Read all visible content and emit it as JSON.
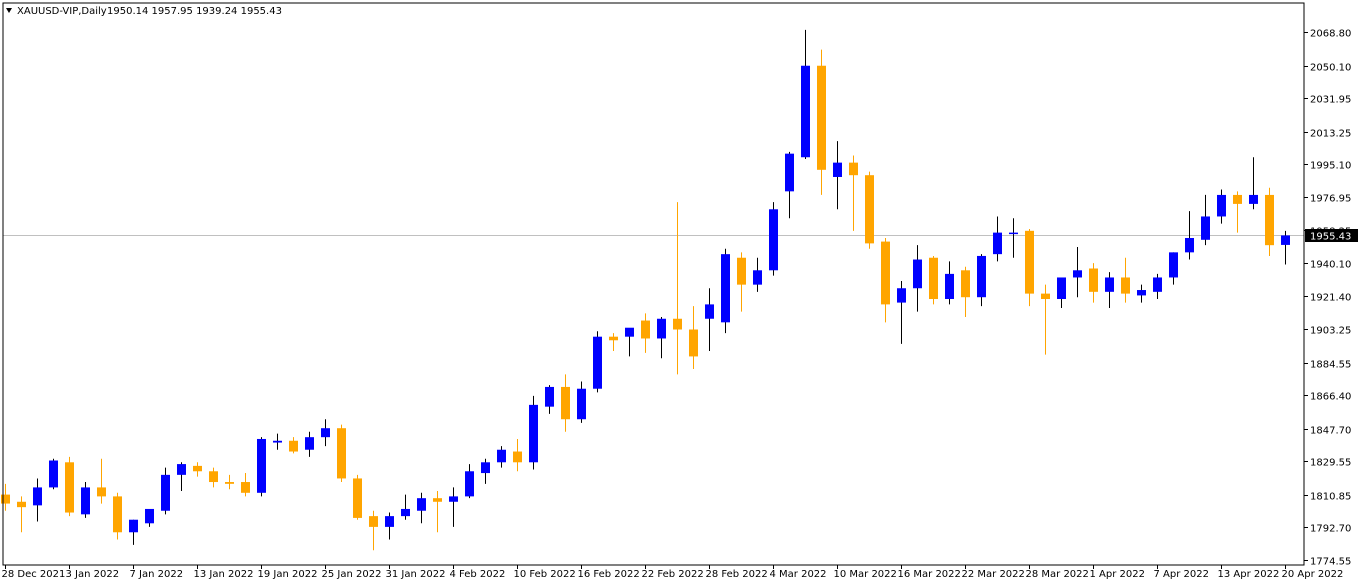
{
  "header": {
    "symbol": "XAUUSD-VIP,Daily",
    "ohlc": "1950.14 1957.95 1939.24 1955.43"
  },
  "colors": {
    "bull": "#0000ff",
    "bear": "#ffa500",
    "bear_wick": "#ffa500",
    "bull_wick": "#000000",
    "price_line": "#c0c0c0",
    "price_label_bg": "#000000",
    "price_label_text": "#ffffff",
    "axis": "#000000"
  },
  "chart_data": {
    "type": "candlestick",
    "symbol": "XAUUSD-VIP",
    "timeframe": "Daily",
    "ylim": [
      1774.55,
      2077.0
    ],
    "y_ticks": [
      "2068.80",
      "2050.10",
      "2031.95",
      "2013.25",
      "1995.10",
      "1976.95",
      "1958.25",
      "1940.10",
      "1921.40",
      "1903.25",
      "1884.55",
      "1866.40",
      "1847.70",
      "1829.55",
      "1810.85",
      "1792.70",
      "1774.55"
    ],
    "x_ticks": [
      {
        "index": 0,
        "label": "28 Dec 2021"
      },
      {
        "index": 4,
        "label": "3 Jan 2022"
      },
      {
        "index": 8,
        "label": "7 Jan 2022"
      },
      {
        "index": 12,
        "label": "13 Jan 2022"
      },
      {
        "index": 16,
        "label": "19 Jan 2022"
      },
      {
        "index": 20,
        "label": "25 Jan 2022"
      },
      {
        "index": 24,
        "label": "31 Jan 2022"
      },
      {
        "index": 28,
        "label": "4 Feb 2022"
      },
      {
        "index": 32,
        "label": "10 Feb 2022"
      },
      {
        "index": 36,
        "label": "16 Feb 2022"
      },
      {
        "index": 40,
        "label": "22 Feb 2022"
      },
      {
        "index": 44,
        "label": "28 Feb 2022"
      },
      {
        "index": 48,
        "label": "4 Mar 2022"
      },
      {
        "index": 52,
        "label": "10 Mar 2022"
      },
      {
        "index": 56,
        "label": "16 Mar 2022"
      },
      {
        "index": 60,
        "label": "22 Mar 2022"
      },
      {
        "index": 64,
        "label": "28 Mar 2022"
      },
      {
        "index": 68,
        "label": "1 Apr 2022"
      },
      {
        "index": 72,
        "label": "7 Apr 2022"
      },
      {
        "index": 76,
        "label": "13 Apr 2022"
      },
      {
        "index": 80,
        "label": "20 Apr 2022"
      }
    ],
    "current_price": 1955.43,
    "current_price_label": "1955.43",
    "candles": [
      {
        "o": 1811.0,
        "h": 1817.0,
        "l": 1802.0,
        "c": 1806.0
      },
      {
        "o": 1807.0,
        "h": 1810.0,
        "l": 1790.0,
        "c": 1804.0
      },
      {
        "o": 1805.0,
        "h": 1820.0,
        "l": 1796.0,
        "c": 1815.0
      },
      {
        "o": 1815.0,
        "h": 1831.0,
        "l": 1814.0,
        "c": 1830.0
      },
      {
        "o": 1829.0,
        "h": 1832.0,
        "l": 1799.0,
        "c": 1801.0
      },
      {
        "o": 1800.0,
        "h": 1818.0,
        "l": 1798.0,
        "c": 1815.0
      },
      {
        "o": 1815.0,
        "h": 1831.0,
        "l": 1806.0,
        "c": 1810.0
      },
      {
        "o": 1810.0,
        "h": 1812.0,
        "l": 1786.0,
        "c": 1790.0
      },
      {
        "o": 1790.0,
        "h": 1797.0,
        "l": 1783.0,
        "c": 1797.0
      },
      {
        "o": 1795.0,
        "h": 1803.0,
        "l": 1793.0,
        "c": 1803.0
      },
      {
        "o": 1802.0,
        "h": 1826.0,
        "l": 1800.0,
        "c": 1822.0
      },
      {
        "o": 1822.0,
        "h": 1829.0,
        "l": 1813.0,
        "c": 1828.0
      },
      {
        "o": 1827.0,
        "h": 1829.0,
        "l": 1821.0,
        "c": 1824.0
      },
      {
        "o": 1824.0,
        "h": 1826.0,
        "l": 1815.0,
        "c": 1818.0
      },
      {
        "o": 1818.0,
        "h": 1822.0,
        "l": 1814.0,
        "c": 1817.0
      },
      {
        "o": 1818.0,
        "h": 1823.0,
        "l": 1810.0,
        "c": 1812.0
      },
      {
        "o": 1812.0,
        "h": 1843.0,
        "l": 1810.0,
        "c": 1842.0
      },
      {
        "o": 1840.0,
        "h": 1845.0,
        "l": 1836.0,
        "c": 1841.0
      },
      {
        "o": 1841.0,
        "h": 1843.0,
        "l": 1834.0,
        "c": 1835.0
      },
      {
        "o": 1836.0,
        "h": 1846.0,
        "l": 1832.0,
        "c": 1843.0
      },
      {
        "o": 1843.0,
        "h": 1853.0,
        "l": 1838.0,
        "c": 1848.0
      },
      {
        "o": 1848.0,
        "h": 1850.0,
        "l": 1818.0,
        "c": 1820.0
      },
      {
        "o": 1820.0,
        "h": 1822.0,
        "l": 1797.0,
        "c": 1798.0
      },
      {
        "o": 1799.0,
        "h": 1802.0,
        "l": 1780.0,
        "c": 1793.0
      },
      {
        "o": 1793.0,
        "h": 1801.0,
        "l": 1786.0,
        "c": 1799.0
      },
      {
        "o": 1799.0,
        "h": 1811.0,
        "l": 1797.0,
        "c": 1803.0
      },
      {
        "o": 1802.0,
        "h": 1812.0,
        "l": 1795.0,
        "c": 1809.0
      },
      {
        "o": 1809.0,
        "h": 1813.0,
        "l": 1790.0,
        "c": 1807.0
      },
      {
        "o": 1807.0,
        "h": 1815.0,
        "l": 1793.0,
        "c": 1810.0
      },
      {
        "o": 1810.0,
        "h": 1828.0,
        "l": 1809.0,
        "c": 1824.0
      },
      {
        "o": 1823.0,
        "h": 1831.0,
        "l": 1817.0,
        "c": 1829.0
      },
      {
        "o": 1829.0,
        "h": 1838.0,
        "l": 1826.0,
        "c": 1836.0
      },
      {
        "o": 1835.0,
        "h": 1842.0,
        "l": 1824.0,
        "c": 1829.0
      },
      {
        "o": 1829.0,
        "h": 1866.0,
        "l": 1825.0,
        "c": 1861.0
      },
      {
        "o": 1860.0,
        "h": 1872.0,
        "l": 1856.0,
        "c": 1871.0
      },
      {
        "o": 1871.0,
        "h": 1878.0,
        "l": 1846.0,
        "c": 1853.0
      },
      {
        "o": 1853.0,
        "h": 1874.0,
        "l": 1851.0,
        "c": 1870.0
      },
      {
        "o": 1870.0,
        "h": 1902.0,
        "l": 1868.0,
        "c": 1899.0
      },
      {
        "o": 1899.0,
        "h": 1901.0,
        "l": 1891.0,
        "c": 1897.0
      },
      {
        "o": 1899.0,
        "h": 1903.0,
        "l": 1888.0,
        "c": 1904.0
      },
      {
        "o": 1908.0,
        "h": 1912.0,
        "l": 1890.0,
        "c": 1898.0
      },
      {
        "o": 1898.0,
        "h": 1910.0,
        "l": 1887.0,
        "c": 1909.0
      },
      {
        "o": 1909.0,
        "h": 1974.0,
        "l": 1878.0,
        "c": 1903.0
      },
      {
        "o": 1903.0,
        "h": 1916.0,
        "l": 1881.0,
        "c": 1888.0
      },
      {
        "o": 1909.0,
        "h": 1926.0,
        "l": 1891.0,
        "c": 1917.0
      },
      {
        "o": 1907.0,
        "h": 1948.0,
        "l": 1901.0,
        "c": 1945.0
      },
      {
        "o": 1943.0,
        "h": 1946.0,
        "l": 1913.0,
        "c": 1928.0
      },
      {
        "o": 1928.0,
        "h": 1943.0,
        "l": 1924.0,
        "c": 1936.0
      },
      {
        "o": 1936.0,
        "h": 1974.0,
        "l": 1933.0,
        "c": 1970.0
      },
      {
        "o": 1980.0,
        "h": 2002.0,
        "l": 1965.0,
        "c": 2001.0
      },
      {
        "o": 1999.0,
        "h": 2070.0,
        "l": 1998.0,
        "c": 2050.0
      },
      {
        "o": 2050.0,
        "h": 2059.0,
        "l": 1978.0,
        "c": 1992.0
      },
      {
        "o": 1988.0,
        "h": 2008.0,
        "l": 1970.0,
        "c": 1996.0
      },
      {
        "o": 1996.0,
        "h": 2000.0,
        "l": 1958.0,
        "c": 1989.0
      },
      {
        "o": 1989.0,
        "h": 1991.0,
        "l": 1948.0,
        "c": 1951.0
      },
      {
        "o": 1952.0,
        "h": 1954.0,
        "l": 1907.0,
        "c": 1917.0
      },
      {
        "o": 1918.0,
        "h": 1930.0,
        "l": 1895.0,
        "c": 1926.0
      },
      {
        "o": 1926.0,
        "h": 1950.0,
        "l": 1913.0,
        "c": 1942.0
      },
      {
        "o": 1943.0,
        "h": 1944.0,
        "l": 1917.0,
        "c": 1920.0
      },
      {
        "o": 1920.0,
        "h": 1941.0,
        "l": 1917.0,
        "c": 1934.0
      },
      {
        "o": 1936.0,
        "h": 1938.0,
        "l": 1910.0,
        "c": 1921.0
      },
      {
        "o": 1921.0,
        "h": 1945.0,
        "l": 1916.0,
        "c": 1944.0
      },
      {
        "o": 1945.0,
        "h": 1966.0,
        "l": 1941.0,
        "c": 1957.0
      },
      {
        "o": 1957.0,
        "h": 1965.0,
        "l": 1943.0,
        "c": 1957.0
      },
      {
        "o": 1958.0,
        "h": 1959.0,
        "l": 1916.0,
        "c": 1923.0
      },
      {
        "o": 1923.0,
        "h": 1928.0,
        "l": 1889.0,
        "c": 1920.0
      },
      {
        "o": 1920.0,
        "h": 1932.0,
        "l": 1915.0,
        "c": 1932.0
      },
      {
        "o": 1932.0,
        "h": 1949.0,
        "l": 1921.0,
        "c": 1936.0
      },
      {
        "o": 1937.0,
        "h": 1940.0,
        "l": 1918.0,
        "c": 1924.0
      },
      {
        "o": 1924.0,
        "h": 1935.0,
        "l": 1915.0,
        "c": 1932.0
      },
      {
        "o": 1932.0,
        "h": 1943.0,
        "l": 1918.0,
        "c": 1923.0
      },
      {
        "o": 1922.0,
        "h": 1928.0,
        "l": 1918.0,
        "c": 1925.0
      },
      {
        "o": 1924.0,
        "h": 1934.0,
        "l": 1920.0,
        "c": 1932.0
      },
      {
        "o": 1932.0,
        "h": 1946.0,
        "l": 1928.0,
        "c": 1946.0
      },
      {
        "o": 1946.0,
        "h": 1969.0,
        "l": 1942.0,
        "c": 1954.0
      },
      {
        "o": 1953.0,
        "h": 1978.0,
        "l": 1950.0,
        "c": 1966.0
      },
      {
        "o": 1966.0,
        "h": 1981.0,
        "l": 1962.0,
        "c": 1978.0
      },
      {
        "o": 1978.0,
        "h": 1980.0,
        "l": 1957.0,
        "c": 1973.0
      },
      {
        "o": 1973.0,
        "h": 1999.0,
        "l": 1970.0,
        "c": 1978.0
      },
      {
        "o": 1978.0,
        "h": 1982.0,
        "l": 1944.0,
        "c": 1950.0
      },
      {
        "o": 1950.14,
        "h": 1957.95,
        "l": 1939.24,
        "c": 1955.43
      }
    ]
  }
}
